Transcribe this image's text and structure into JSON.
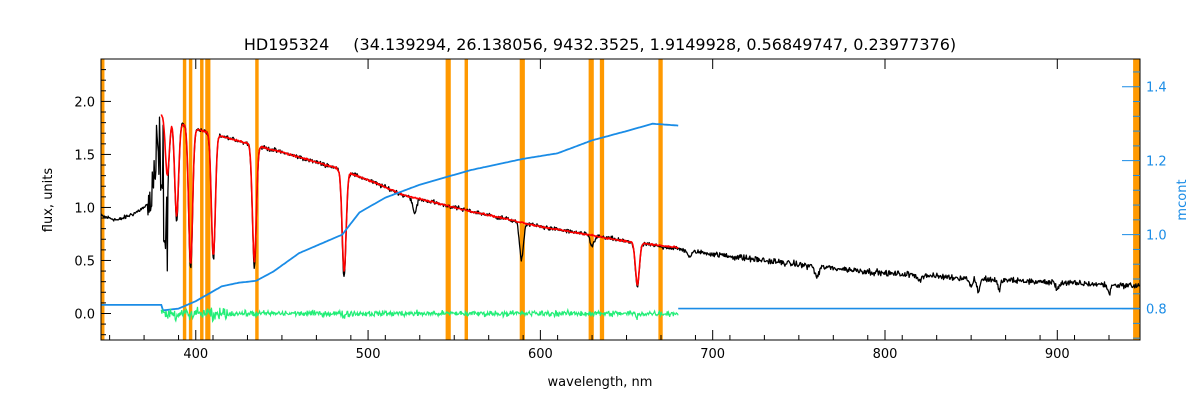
{
  "chart_data": {
    "type": "line",
    "title": "HD195324",
    "subtitle": "(34.139294, 26.138056, 9432.3525, 1.9149928, 0.56849747, 0.23977376)",
    "xlabel": "wavelength, nm",
    "ylabel": "flux, units",
    "y2label": "mcont",
    "xlim": [
      345,
      948
    ],
    "ylim": [
      -0.25,
      2.4
    ],
    "y2lim": [
      0.715,
      1.475
    ],
    "xticks": [
      400,
      500,
      600,
      700,
      800,
      900
    ],
    "yticks": [
      "0.0",
      "0.5",
      "1.0",
      "1.5",
      "2.0"
    ],
    "y2ticks": [
      "0.8",
      "1.0",
      "1.2",
      "1.4"
    ],
    "grid": false,
    "colors": {
      "observed": "#000000",
      "model": "#ff0000",
      "continuum": "#1a8ce6",
      "residual": "#22ee77",
      "masked": "#ff9900",
      "right_axis": "#1a8ce6"
    },
    "masked_regions_nm": [
      [
        345,
        347
      ],
      [
        392.5,
        394.5
      ],
      [
        396,
        398
      ],
      [
        402.5,
        404.5
      ],
      [
        405.5,
        408.5
      ],
      [
        434.5,
        436.5
      ],
      [
        545,
        548
      ],
      [
        556,
        558
      ],
      [
        588,
        591
      ],
      [
        628,
        631
      ],
      [
        634.5,
        637
      ],
      [
        668.5,
        671
      ],
      [
        944,
        948
      ]
    ],
    "series": [
      {
        "role": "observed",
        "continuum": [
          [
            345,
            0.92
          ],
          [
            355,
            0.88
          ],
          [
            365,
            0.95
          ],
          [
            372,
            1.02
          ],
          [
            378,
            1.9
          ],
          [
            385,
            1.85
          ],
          [
            400,
            1.74
          ],
          [
            420,
            1.65
          ],
          [
            450,
            1.52
          ],
          [
            480,
            1.38
          ],
          [
            500,
            1.26
          ],
          [
            520,
            1.12
          ],
          [
            550,
            1.0
          ],
          [
            600,
            0.82
          ],
          [
            650,
            0.68
          ],
          [
            700,
            0.56
          ],
          [
            750,
            0.46
          ],
          [
            800,
            0.38
          ],
          [
            850,
            0.33
          ],
          [
            900,
            0.29
          ],
          [
            948,
            0.26
          ]
        ],
        "balmer_jumble": [
          372,
          384
        ],
        "absorption_lines": [
          [
            383.5,
            0.6
          ],
          [
            388.9,
            0.95
          ],
          [
            397.0,
            1.35
          ],
          [
            410.2,
            1.2
          ],
          [
            434.0,
            1.15
          ],
          [
            486.1,
            1.0
          ],
          [
            527.0,
            0.15
          ],
          [
            589.0,
            0.35
          ],
          [
            630.0,
            0.1
          ],
          [
            656.3,
            0.42
          ],
          [
            686.7,
            0.06
          ],
          [
            760.5,
            0.1
          ],
          [
            820.0,
            0.05
          ],
          [
            849.8,
            0.08
          ],
          [
            854.2,
            0.12
          ],
          [
            866.2,
            0.1
          ],
          [
            900.0,
            0.06
          ],
          [
            930.0,
            0.08
          ]
        ]
      },
      {
        "role": "model",
        "x_range": [
          380,
          680
        ],
        "continuum": [
          [
            380,
            1.88
          ],
          [
            400,
            1.74
          ],
          [
            420,
            1.65
          ],
          [
            450,
            1.52
          ],
          [
            480,
            1.38
          ],
          [
            500,
            1.26
          ],
          [
            520,
            1.12
          ],
          [
            550,
            1.0
          ],
          [
            600,
            0.82
          ],
          [
            650,
            0.68
          ],
          [
            680,
            0.62
          ]
        ],
        "absorption_lines": [
          [
            383.5,
            0.55
          ],
          [
            388.9,
            0.9
          ],
          [
            397.0,
            1.3
          ],
          [
            410.2,
            1.15
          ],
          [
            434.0,
            1.1
          ],
          [
            486.1,
            0.95
          ],
          [
            656.3,
            0.4
          ]
        ]
      },
      {
        "role": "continuum",
        "axis": "right",
        "points": [
          [
            345,
            0.81
          ],
          [
            380,
            0.81
          ],
          [
            381,
            0.795
          ],
          [
            390,
            0.8
          ],
          [
            400,
            0.82
          ],
          [
            415,
            0.86
          ],
          [
            425,
            0.87
          ],
          [
            435,
            0.875
          ],
          [
            445,
            0.9
          ],
          [
            460,
            0.95
          ],
          [
            475,
            0.98
          ],
          [
            485,
            1.0
          ],
          [
            495,
            1.06
          ],
          [
            510,
            1.1
          ],
          [
            530,
            1.135
          ],
          [
            560,
            1.175
          ],
          [
            590,
            1.205
          ],
          [
            610,
            1.22
          ],
          [
            630,
            1.255
          ],
          [
            650,
            1.28
          ],
          [
            665,
            1.3
          ],
          [
            680,
            1.295
          ]
        ],
        "baseline": 0.8
      },
      {
        "role": "residual",
        "x_range": [
          380,
          680
        ],
        "y_center": 0.0,
        "noise_amplitude": 0.04
      }
    ]
  }
}
